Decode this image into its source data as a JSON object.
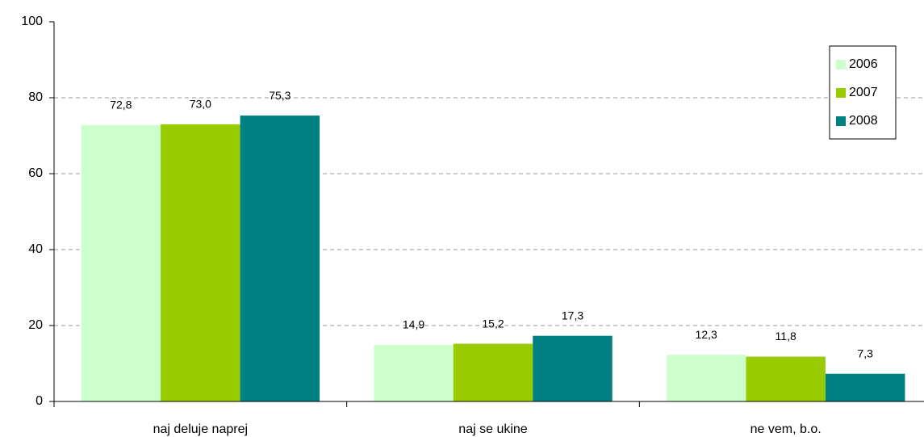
{
  "chart_data": {
    "type": "bar",
    "categories": [
      "naj deluje naprej",
      "naj se ukine",
      "ne vem, b.o."
    ],
    "series": [
      {
        "name": "2006",
        "color": "#ccffcc",
        "values": [
          72.8,
          14.9,
          12.3
        ],
        "value_labels": [
          "72,8",
          "14,9",
          "12,3"
        ]
      },
      {
        "name": "2007",
        "color": "#99cc00",
        "values": [
          73.0,
          15.2,
          11.8
        ],
        "value_labels": [
          "73,0",
          "15,2",
          "11,8"
        ]
      },
      {
        "name": "2008",
        "color": "#008080",
        "values": [
          75.3,
          17.3,
          7.3
        ],
        "value_labels": [
          "75,3",
          "17,3",
          "7,3"
        ]
      }
    ],
    "ylim": [
      0,
      100
    ],
    "yticks": [
      0,
      20,
      40,
      60,
      80,
      100
    ],
    "grid": true,
    "legend": "upper right"
  }
}
